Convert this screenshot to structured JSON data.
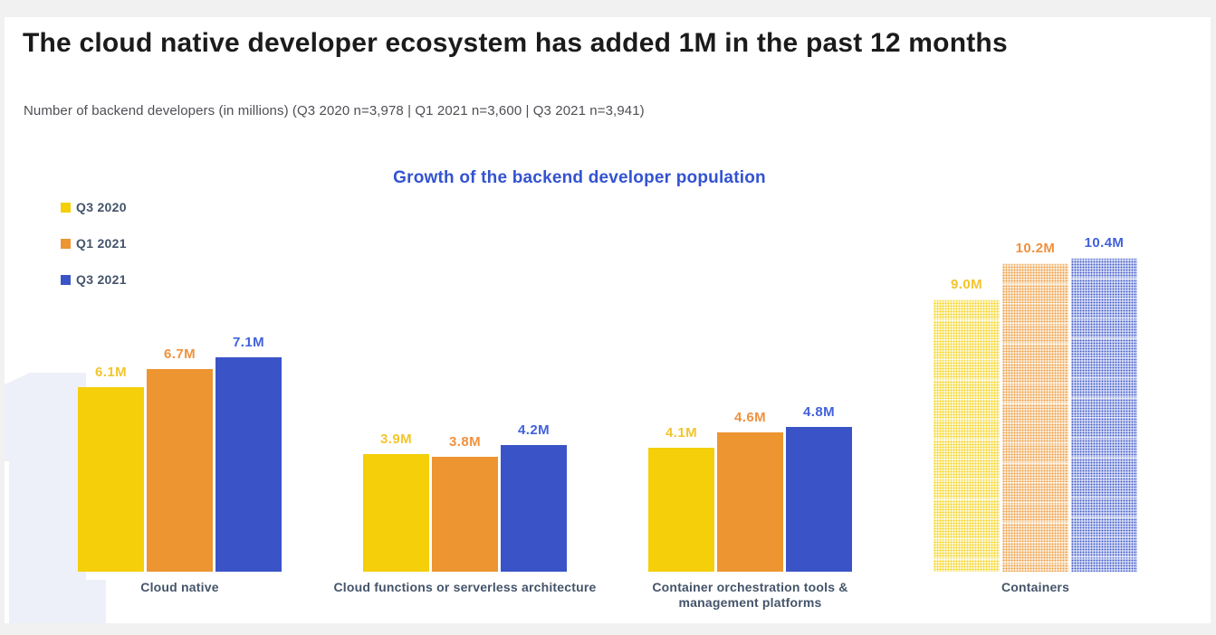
{
  "page": {
    "background_color": "#F1F1F2",
    "card_color": "#FFFFFF",
    "title": "The cloud native developer ecosystem has added 1M in the past 12 months",
    "subtitle": "Number of backend developers (in millions) (Q3 2020 n=3,978 | Q1 2021 n=3,600 | Q3 2021 n=3,941)",
    "watermark_text": "1",
    "watermark_color": "#EDF0F8"
  },
  "chart_data": {
    "type": "bar",
    "title": "Growth of the backend developer population",
    "title_color": "#3353D1",
    "unit": "millions of developers",
    "ylim": [
      0,
      11
    ],
    "grid": false,
    "axes_hidden": true,
    "legend_position": "top-left",
    "category_label_color": "#44546A",
    "categories": [
      "Cloud native",
      "Cloud functions or serverless architecture",
      "Container orchestration tools & management platforms",
      "Containers"
    ],
    "series": [
      {
        "name": "Q3 2020",
        "color": "#F4CF0A",
        "label_color": "#F2C52D",
        "values": [
          6.1,
          3.9,
          4.1,
          9.0
        ],
        "labels": [
          "6.1M",
          "3.9M",
          "4.1M",
          "9.0M"
        ]
      },
      {
        "name": "Q1 2021",
        "color": "#EC9531",
        "label_color": "#F0913F",
        "values": [
          6.7,
          3.8,
          4.6,
          10.2
        ],
        "labels": [
          "6.7M",
          "3.8M",
          "4.6M",
          "10.2M"
        ]
      },
      {
        "name": "Q3 2021",
        "color": "#3A54C8",
        "label_color": "#4161DB",
        "values": [
          7.1,
          4.2,
          4.8,
          10.4
        ],
        "labels": [
          "7.1M",
          "4.2M",
          "4.8M",
          "10.4M"
        ]
      }
    ],
    "pattern_note": "Bars of the Containers group are rendered with a halftone dot texture; all other groups are solid fills"
  }
}
